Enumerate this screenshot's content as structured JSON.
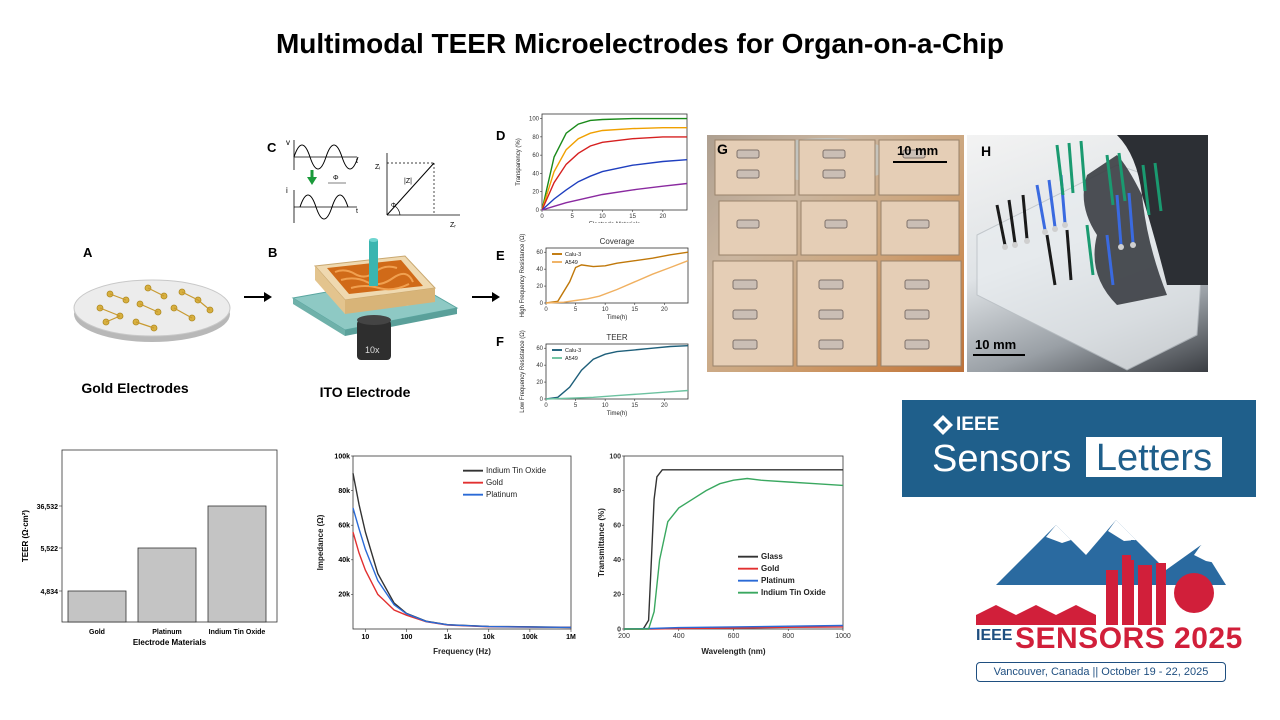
{
  "title": "Multimodal TEER Microelectrodes for Organ-on-a-Chip",
  "panels": {
    "A": {
      "letter": "A",
      "caption": "Gold Electrodes"
    },
    "B": {
      "letter": "B",
      "caption": "ITO Electrode",
      "objective": "10x"
    },
    "C": {
      "letter": "C",
      "v": "v",
      "i": "i",
      "t": "t",
      "phi": "Φ",
      "zi": "Zᵢ",
      "zr": "Zᵣ",
      "absz": "|Z|"
    },
    "D": {
      "letter": "D"
    },
    "E": {
      "letter": "E"
    },
    "F": {
      "letter": "F"
    },
    "G": {
      "letter": "G",
      "scale": "10 mm"
    },
    "H": {
      "letter": "H",
      "scale": "10 mm"
    }
  },
  "logos": {
    "ieee_sensors_letters": {
      "ieee": "IEEE",
      "sensors": "Sensors",
      "letters": "Letters"
    },
    "sensors_2025": {
      "ieee": "IEEE",
      "name": "SENSORS 2025",
      "subtitle": "Vancouver, Canada || October 19 - 22, 2025"
    }
  },
  "colors": {
    "ieee_blue": "#1f5f8b",
    "sensors_red": "#d11f3a",
    "mountain_blue": "#2a6aa0"
  },
  "chart_data": [
    {
      "id": "D",
      "type": "line",
      "xlabel": "Electrode Materials",
      "ylabel": "Transparency (%)",
      "xticks": [
        0,
        5,
        10,
        15,
        20
      ],
      "yticks": [
        0,
        20,
        40,
        60,
        80,
        100
      ],
      "xlim": [
        0,
        24
      ],
      "ylim": [
        0,
        105
      ],
      "series": [
        {
          "color": "#1a8a1a",
          "x": [
            0,
            2,
            4,
            6,
            8,
            10,
            15,
            20,
            24
          ],
          "values": [
            0,
            58,
            84,
            94,
            98,
            99,
            100,
            100,
            100
          ]
        },
        {
          "color": "#f0a000",
          "x": [
            0,
            2,
            4,
            6,
            8,
            10,
            15,
            20,
            24
          ],
          "values": [
            0,
            42,
            66,
            78,
            84,
            87,
            89,
            90,
            90
          ]
        },
        {
          "color": "#d62020",
          "x": [
            0,
            2,
            4,
            6,
            8,
            10,
            15,
            20,
            24
          ],
          "values": [
            0,
            30,
            50,
            62,
            70,
            74,
            78,
            80,
            80
          ]
        },
        {
          "color": "#1f3fbf",
          "x": [
            0,
            2,
            4,
            6,
            8,
            10,
            15,
            20,
            24
          ],
          "values": [
            0,
            12,
            22,
            31,
            37,
            42,
            49,
            53,
            55
          ]
        },
        {
          "color": "#8a2aa0",
          "x": [
            0,
            2,
            4,
            6,
            8,
            10,
            15,
            20,
            24
          ],
          "values": [
            0,
            4,
            8,
            11,
            14,
            17,
            22,
            26,
            29
          ]
        }
      ]
    },
    {
      "id": "E",
      "type": "line",
      "title": "Coverage",
      "xlabel": "Time(h)",
      "ylabel": "High Frequency Resistance (Ω)",
      "xticks": [
        0,
        5,
        10,
        15,
        20
      ],
      "yticks": [
        0,
        20,
        40,
        60
      ],
      "xlim": [
        0,
        24
      ],
      "ylim": [
        0,
        65
      ],
      "series": [
        {
          "name": "Calu-3",
          "color": "#c0780a",
          "x": [
            0,
            2,
            4,
            5,
            6,
            8,
            10,
            12,
            15,
            18,
            21,
            24
          ],
          "values": [
            0,
            2,
            25,
            42,
            45,
            43,
            44,
            47,
            50,
            53,
            57,
            60
          ]
        },
        {
          "name": "A549",
          "color": "#f0b060",
          "x": [
            0,
            3,
            5,
            7,
            9,
            12,
            15,
            18,
            21,
            24
          ],
          "values": [
            0,
            1,
            3,
            5,
            8,
            16,
            25,
            34,
            42,
            50
          ]
        }
      ]
    },
    {
      "id": "F",
      "type": "line",
      "title": "TEER",
      "xlabel": "Time(h)",
      "ylabel": "Low Frequency Resistance (Ω)",
      "xticks": [
        0,
        5,
        10,
        15,
        20
      ],
      "yticks": [
        0,
        20,
        40,
        60
      ],
      "xlim": [
        0,
        24
      ],
      "ylim": [
        0,
        65
      ],
      "series": [
        {
          "name": "Calu-3",
          "color": "#1e5f7a",
          "x": [
            0,
            2,
            4,
            6,
            8,
            10,
            12,
            15,
            18,
            21,
            24
          ],
          "values": [
            0,
            2,
            14,
            34,
            47,
            53,
            56,
            58,
            60,
            62,
            63
          ]
        },
        {
          "name": "A549",
          "color": "#6cc2a0",
          "x": [
            0,
            4,
            8,
            12,
            16,
            20,
            24
          ],
          "values": [
            0,
            1,
            2,
            4,
            6,
            8,
            10
          ]
        }
      ]
    },
    {
      "id": "bar",
      "type": "bar",
      "xlabel": "Electrode Materials",
      "ylabel": "TEER (Ω·cm²)",
      "categories": [
        "Gold",
        "Platinum",
        "Indium Tin Oxide"
      ],
      "values": [
        4834,
        5522,
        36532
      ],
      "ytick_labels": [
        "4,834",
        "5,522",
        "36,532"
      ]
    },
    {
      "id": "impedance",
      "type": "line",
      "xscale": "log",
      "xlabel": "Frequency (Hz)",
      "ylabel": "Impedance (Ω)",
      "xtick_labels": [
        "10",
        "100",
        "1k",
        "10k",
        "100k",
        "1M"
      ],
      "ytick_labels": [
        "20k",
        "40k",
        "60k",
        "80k",
        "100k"
      ],
      "xlim": [
        5,
        1000000
      ],
      "ylim": [
        0,
        100000
      ],
      "series": [
        {
          "name": "Indium Tin Oxide",
          "color": "#333333",
          "x": [
            5,
            7,
            10,
            20,
            50,
            100,
            300,
            1000,
            10000,
            1000000
          ],
          "values": [
            90000,
            72000,
            56000,
            32000,
            15000,
            9000,
            4500,
            2500,
            1500,
            1000
          ]
        },
        {
          "name": "Gold",
          "color": "#e23030",
          "x": [
            5,
            7,
            10,
            20,
            50,
            100,
            300,
            1000,
            10000,
            1000000
          ],
          "values": [
            56000,
            44000,
            34000,
            20000,
            11000,
            8000,
            4200,
            2300,
            1300,
            900
          ]
        },
        {
          "name": "Platinum",
          "color": "#2a6ad6",
          "x": [
            5,
            7,
            10,
            20,
            50,
            100,
            300,
            1000,
            10000,
            1000000
          ],
          "values": [
            70000,
            58000,
            46000,
            28000,
            14000,
            8800,
            4400,
            2400,
            1400,
            950
          ]
        }
      ]
    },
    {
      "id": "transmittance",
      "type": "line",
      "xlabel": "Wavelength (nm)",
      "ylabel": "Transmittance (%)",
      "xticks": [
        200,
        400,
        600,
        800,
        1000
      ],
      "yticks": [
        0,
        20,
        40,
        60,
        80,
        100
      ],
      "xlim": [
        200,
        1000
      ],
      "ylim": [
        0,
        100
      ],
      "series": [
        {
          "name": "Glass",
          "color": "#333333",
          "x": [
            200,
            270,
            290,
            300,
            310,
            320,
            340,
            400,
            600,
            800,
            1000
          ],
          "values": [
            0,
            0,
            5,
            40,
            75,
            88,
            92,
            92,
            92,
            92,
            92
          ]
        },
        {
          "name": "Gold",
          "color": "#e23030",
          "x": [
            200,
            300,
            400,
            600,
            800,
            1000
          ],
          "values": [
            0,
            0,
            0.3,
            0.6,
            1,
            1.2
          ]
        },
        {
          "name": "Platinum",
          "color": "#2a6ad6",
          "x": [
            200,
            300,
            400,
            600,
            800,
            1000
          ],
          "values": [
            0,
            0.3,
            0.8,
            1.2,
            1.6,
            2
          ]
        },
        {
          "name": "Indium Tin Oxide",
          "color": "#3aa860",
          "x": [
            200,
            290,
            310,
            330,
            360,
            400,
            450,
            500,
            550,
            600,
            650,
            700,
            800,
            900,
            1000
          ],
          "values": [
            0,
            0,
            10,
            40,
            62,
            70,
            75,
            80,
            84,
            86,
            87,
            86,
            85,
            84,
            83
          ]
        }
      ]
    }
  ]
}
